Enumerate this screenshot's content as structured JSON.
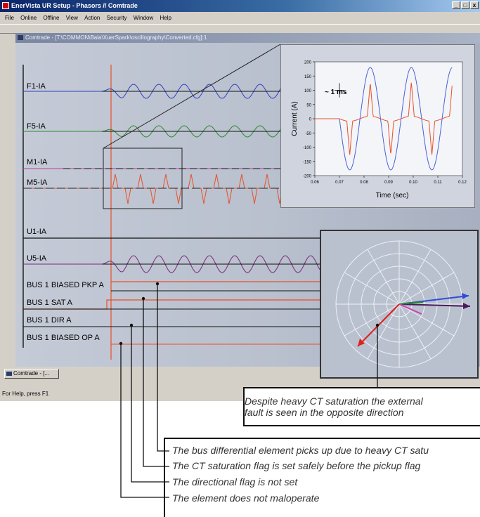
{
  "window": {
    "title": "EnerVista UR Setup - Phasors // Comtrade",
    "buttons": [
      "_",
      "□",
      "x"
    ]
  },
  "menu": [
    "File",
    "Online",
    "Offline",
    "View",
    "Action",
    "Security",
    "Window",
    "Help"
  ],
  "child_window": {
    "title": "Comtrade - [T:\\COMMON\\Bala\\XuerSpark\\oscillography\\Converted.cfg]:1"
  },
  "signals": [
    "F1-IA",
    "F5-IA",
    "M1-IA",
    "M5-IA",
    "U1-IA",
    "U5-IA",
    "BUS 1 BIASED PKP A",
    "BUS 1 SAT A",
    "BUS 1 DIR A",
    "BUS 1 BIASED OP A"
  ],
  "taskbar": {
    "item": "Comtrade - [..."
  },
  "statusbar": {
    "text": "For Help, press F1"
  },
  "chart_data": {
    "type": "line",
    "xlabel": "Time (sec)",
    "ylabel": "Current (A)",
    "xlim": [
      0.06,
      0.12
    ],
    "ylim": [
      -200,
      200
    ],
    "xticks": [
      "0.06",
      "0.07",
      "0.08",
      "0.09",
      "0.10",
      "0.11",
      "0.12"
    ],
    "yticks": [
      "200",
      "150",
      "100",
      "50",
      "0",
      "-50",
      "-100",
      "-150",
      "-200"
    ],
    "annotation": "~ 1 ms",
    "series": [
      {
        "color": "#4a5fd6",
        "shape": "sine",
        "amplitude": 180,
        "period": 0.0167,
        "start": 0.07
      },
      {
        "color": "#e8502a",
        "shape": "saturated",
        "peak": 120,
        "start": 0.07
      }
    ]
  },
  "callout": {
    "lines": [
      "Despite heavy CT saturation the external",
      "fault is seen in the opposite direction"
    ]
  },
  "notes": [
    "The bus differential element picks up due to heavy CT satu",
    "The CT saturation flag is set safely before the pickup flag",
    "The directional flag is not set",
    "The element does not maloperate"
  ],
  "colors": {
    "blue": "#2e3fbf",
    "green": "#2a8a2a",
    "pink": "#c23a9a",
    "orange": "#e8502a",
    "purple": "#7a2a7a",
    "red": "#e0301e"
  }
}
